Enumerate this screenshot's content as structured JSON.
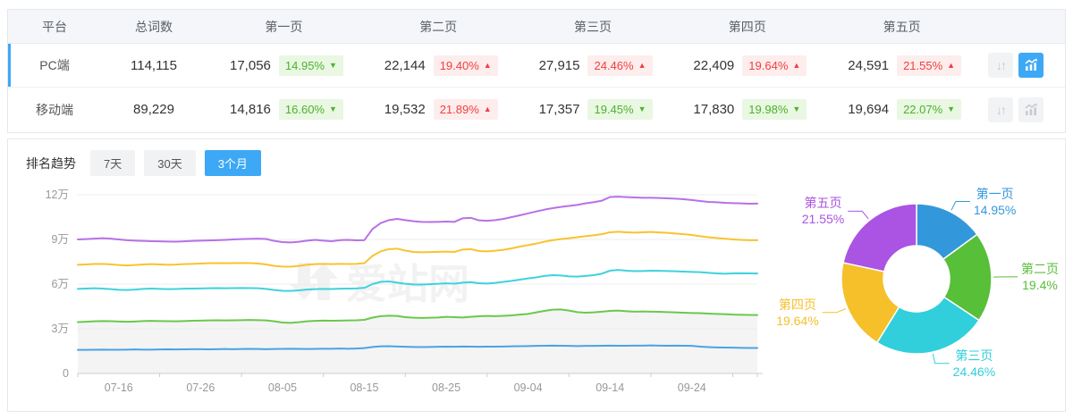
{
  "accent": {
    "blue": "#3da8f5",
    "badge_up_red": "#f23e3e",
    "badge_down_green": "#4cb32a"
  },
  "table": {
    "columns": [
      "平台",
      "总词数",
      "第一页",
      "第二页",
      "第三页",
      "第四页",
      "第五页"
    ],
    "rows": [
      {
        "platform": "PC端",
        "total": "114,115",
        "selected": true,
        "chart_active": true,
        "pages": [
          {
            "value": "17,056",
            "pct": "14.95%",
            "dir": "down"
          },
          {
            "value": "22,144",
            "pct": "19.40%",
            "dir": "up"
          },
          {
            "value": "27,915",
            "pct": "24.46%",
            "dir": "up"
          },
          {
            "value": "22,409",
            "pct": "19.64%",
            "dir": "up"
          },
          {
            "value": "24,591",
            "pct": "21.55%",
            "dir": "up"
          }
        ]
      },
      {
        "platform": "移动端",
        "total": "89,229",
        "selected": false,
        "chart_active": false,
        "pages": [
          {
            "value": "14,816",
            "pct": "16.60%",
            "dir": "down"
          },
          {
            "value": "19,532",
            "pct": "21.89%",
            "dir": "up"
          },
          {
            "value": "17,357",
            "pct": "19.45%",
            "dir": "down"
          },
          {
            "value": "17,830",
            "pct": "19.98%",
            "dir": "down"
          },
          {
            "value": "19,694",
            "pct": "22.07%",
            "dir": "down"
          }
        ]
      }
    ]
  },
  "trend": {
    "label": "排名趋势",
    "tabs": [
      {
        "label": "7天",
        "active": false
      },
      {
        "label": "30天",
        "active": false
      },
      {
        "label": "3个月",
        "active": true
      }
    ]
  },
  "watermark": "爱站网",
  "chart_data": [
    {
      "type": "line",
      "title": "排名趋势 3个月 (PC端, 累计词数)",
      "grid": true,
      "ylim": [
        0,
        12
      ],
      "yticks": [
        {
          "v": 0,
          "label": "0"
        },
        {
          "v": 3,
          "label": "3万"
        },
        {
          "v": 6,
          "label": "6万"
        },
        {
          "v": 9,
          "label": "9万"
        },
        {
          "v": 12,
          "label": "12万"
        }
      ],
      "x_labels": [
        "07-16",
        "07-26",
        "08-05",
        "08-15",
        "08-25",
        "09-04",
        "09-14",
        "09-24"
      ],
      "x_label_indices": [
        5,
        15,
        25,
        35,
        45,
        55,
        65,
        75
      ],
      "x_tick_indices": [
        0,
        10,
        20,
        30,
        40,
        50,
        60,
        70,
        80,
        83
      ],
      "unit": "万",
      "series": [
        {
          "name": "第一页",
          "color": "#4aa3e2",
          "area": false,
          "values": [
            1.58,
            1.58,
            1.59,
            1.6,
            1.59,
            1.59,
            1.6,
            1.61,
            1.6,
            1.6,
            1.61,
            1.62,
            1.61,
            1.62,
            1.63,
            1.63,
            1.62,
            1.63,
            1.64,
            1.63,
            1.64,
            1.65,
            1.64,
            1.63,
            1.64,
            1.65,
            1.66,
            1.65,
            1.64,
            1.65,
            1.66,
            1.66,
            1.67,
            1.66,
            1.67,
            1.7,
            1.78,
            1.82,
            1.83,
            1.81,
            1.79,
            1.78,
            1.77,
            1.78,
            1.79,
            1.8,
            1.79,
            1.81,
            1.8,
            1.79,
            1.8,
            1.8,
            1.81,
            1.82,
            1.83,
            1.84,
            1.85,
            1.86,
            1.87,
            1.86,
            1.85,
            1.84,
            1.85,
            1.85,
            1.86,
            1.87,
            1.86,
            1.86,
            1.87,
            1.87,
            1.88,
            1.87,
            1.86,
            1.87,
            1.86,
            1.85,
            1.8,
            1.77,
            1.75,
            1.74,
            1.73,
            1.72,
            1.71,
            1.71
          ]
        },
        {
          "name": "第二页",
          "color": "#6bc84c",
          "area": true,
          "area_color": "#f4f4f5",
          "values": [
            3.45,
            3.47,
            3.5,
            3.52,
            3.51,
            3.49,
            3.47,
            3.49,
            3.52,
            3.53,
            3.52,
            3.51,
            3.5,
            3.52,
            3.54,
            3.55,
            3.56,
            3.57,
            3.56,
            3.57,
            3.58,
            3.59,
            3.58,
            3.56,
            3.5,
            3.42,
            3.4,
            3.44,
            3.5,
            3.53,
            3.55,
            3.54,
            3.55,
            3.56,
            3.57,
            3.6,
            3.75,
            3.85,
            3.88,
            3.86,
            3.78,
            3.74,
            3.73,
            3.74,
            3.76,
            3.8,
            3.78,
            3.76,
            3.8,
            3.84,
            3.86,
            3.85,
            3.87,
            3.9,
            3.95,
            4.0,
            4.1,
            4.2,
            4.28,
            4.3,
            4.22,
            4.12,
            4.08,
            4.1,
            4.15,
            4.2,
            4.22,
            4.18,
            4.15,
            4.16,
            4.15,
            4.14,
            4.12,
            4.1,
            4.08,
            4.06,
            4.05,
            4.02,
            4.0,
            3.98,
            3.95,
            3.94,
            3.93,
            3.92
          ]
        },
        {
          "name": "第三页",
          "color": "#3fd2dd",
          "area": false,
          "values": [
            5.68,
            5.7,
            5.72,
            5.7,
            5.66,
            5.62,
            5.6,
            5.63,
            5.68,
            5.7,
            5.68,
            5.66,
            5.67,
            5.69,
            5.7,
            5.71,
            5.72,
            5.73,
            5.72,
            5.73,
            5.74,
            5.73,
            5.72,
            5.68,
            5.6,
            5.55,
            5.54,
            5.58,
            5.63,
            5.66,
            5.68,
            5.67,
            5.69,
            5.7,
            5.71,
            5.75,
            6.0,
            6.15,
            6.18,
            6.1,
            6.02,
            5.98,
            5.97,
            5.99,
            6.02,
            6.05,
            6.03,
            6.1,
            6.13,
            6.06,
            6.04,
            6.08,
            6.15,
            6.22,
            6.3,
            6.38,
            6.45,
            6.55,
            6.6,
            6.58,
            6.52,
            6.5,
            6.55,
            6.6,
            6.7,
            6.9,
            6.95,
            6.9,
            6.87,
            6.88,
            6.9,
            6.89,
            6.88,
            6.86,
            6.84,
            6.82,
            6.8,
            6.76,
            6.72,
            6.7,
            6.72,
            6.73,
            6.72,
            6.71
          ]
        },
        {
          "name": "第四页",
          "color": "#f9c330",
          "area": false,
          "values": [
            7.3,
            7.32,
            7.35,
            7.36,
            7.33,
            7.28,
            7.25,
            7.28,
            7.32,
            7.34,
            7.32,
            7.3,
            7.31,
            7.34,
            7.36,
            7.38,
            7.4,
            7.41,
            7.4,
            7.41,
            7.42,
            7.41,
            7.38,
            7.32,
            7.22,
            7.18,
            7.17,
            7.22,
            7.3,
            7.34,
            7.36,
            7.34,
            7.36,
            7.35,
            7.36,
            7.4,
            7.9,
            8.2,
            8.35,
            8.38,
            8.25,
            8.16,
            8.14,
            8.15,
            8.17,
            8.18,
            8.16,
            8.32,
            8.35,
            8.22,
            8.2,
            8.24,
            8.3,
            8.4,
            8.52,
            8.62,
            8.72,
            8.85,
            8.95,
            9.02,
            9.08,
            9.15,
            9.22,
            9.28,
            9.35,
            9.48,
            9.52,
            9.48,
            9.46,
            9.48,
            9.5,
            9.47,
            9.44,
            9.4,
            9.35,
            9.3,
            9.22,
            9.15,
            9.1,
            9.05,
            9.0,
            8.97,
            8.95,
            8.95
          ]
        },
        {
          "name": "第五页",
          "color": "#b870e6",
          "area": false,
          "values": [
            9.0,
            9.02,
            9.05,
            9.08,
            9.05,
            9.0,
            8.95,
            8.92,
            8.9,
            8.88,
            8.87,
            8.86,
            8.85,
            8.87,
            8.9,
            8.92,
            8.93,
            8.95,
            8.97,
            9.0,
            9.02,
            9.04,
            9.05,
            9.03,
            8.9,
            8.82,
            8.8,
            8.84,
            8.92,
            8.97,
            8.92,
            8.88,
            8.95,
            8.97,
            8.94,
            8.95,
            9.7,
            10.1,
            10.3,
            10.38,
            10.3,
            10.22,
            10.18,
            10.17,
            10.18,
            10.2,
            10.18,
            10.42,
            10.45,
            10.28,
            10.25,
            10.3,
            10.38,
            10.5,
            10.62,
            10.75,
            10.88,
            11.0,
            11.1,
            11.18,
            11.25,
            11.32,
            11.42,
            11.5,
            11.6,
            11.85,
            11.87,
            11.84,
            11.82,
            11.8,
            11.8,
            11.78,
            11.76,
            11.74,
            11.7,
            11.65,
            11.58,
            11.52,
            11.5,
            11.46,
            11.44,
            11.42,
            11.4,
            11.41
          ]
        }
      ]
    },
    {
      "type": "donut",
      "slices": [
        {
          "name": "第一页",
          "pct": 14.95,
          "label": "14.95%",
          "color": "#3398db"
        },
        {
          "name": "第二页",
          "pct": 19.4,
          "label": "19.4%",
          "color": "#57bf38"
        },
        {
          "name": "第三页",
          "pct": 24.46,
          "label": "24.46%",
          "color": "#30cfdb"
        },
        {
          "name": "第四页",
          "pct": 19.64,
          "label": "19.64%",
          "color": "#f6c02a"
        },
        {
          "name": "第五页",
          "pct": 21.55,
          "label": "21.55%",
          "color": "#ab53e3"
        }
      ]
    }
  ]
}
